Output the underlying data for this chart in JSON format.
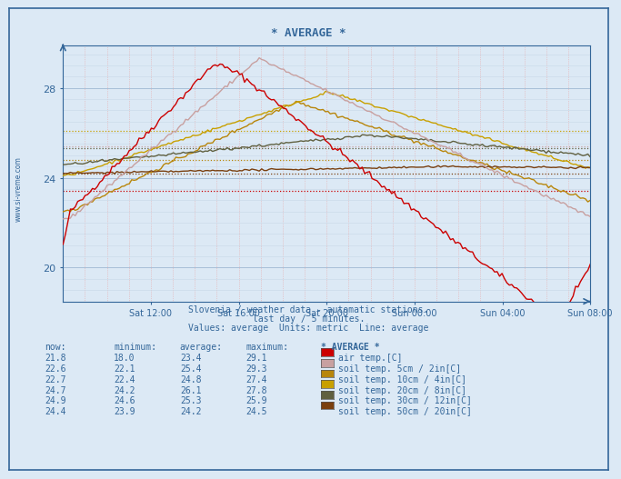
{
  "title": "* AVERAGE *",
  "subtitle1": "Slovenia / weather data - automatic stations.",
  "subtitle2": "last day / 5 minutes.",
  "subtitle3": "Values: average  Units: metric  Line: average",
  "watermark": "www.si-vreme.com",
  "bg_color": "#dce9f5",
  "text_color": "#336699",
  "x_labels": [
    "Sat 12:00",
    "Sat 16:00",
    "Sat 20:00",
    "Sun 00:00",
    "Sun 04:00",
    "Sun 08:00"
  ],
  "y_ticks": [
    20,
    24,
    28
  ],
  "ylim": [
    18.5,
    29.9
  ],
  "n_points": 216,
  "series_colors": [
    "#cc0000",
    "#c8a0a0",
    "#b8860b",
    "#c8a000",
    "#606040",
    "#7a4010"
  ],
  "avg_vals": [
    23.4,
    25.4,
    24.8,
    26.1,
    25.3,
    24.2
  ],
  "legend_colors": [
    "#cc0000",
    "#c8a0a0",
    "#b8860b",
    "#c8a000",
    "#606040",
    "#7a4010"
  ],
  "legend_labels": [
    "air temp.[C]",
    "soil temp. 5cm / 2in[C]",
    "soil temp. 10cm / 4in[C]",
    "soil temp. 20cm / 8in[C]",
    "soil temp. 30cm / 12in[C]",
    "soil temp. 50cm / 20in[C]"
  ],
  "now_vals": [
    "21.8",
    "22.6",
    "22.7",
    "24.7",
    "24.9",
    "24.4"
  ],
  "min_vals": [
    "18.0",
    "22.1",
    "22.4",
    "24.2",
    "24.6",
    "23.9"
  ],
  "mean_vals": [
    "23.4",
    "25.4",
    "24.8",
    "26.1",
    "25.3",
    "24.2"
  ],
  "max_vals": [
    "29.1",
    "29.3",
    "27.4",
    "27.8",
    "25.9",
    "24.5"
  ]
}
